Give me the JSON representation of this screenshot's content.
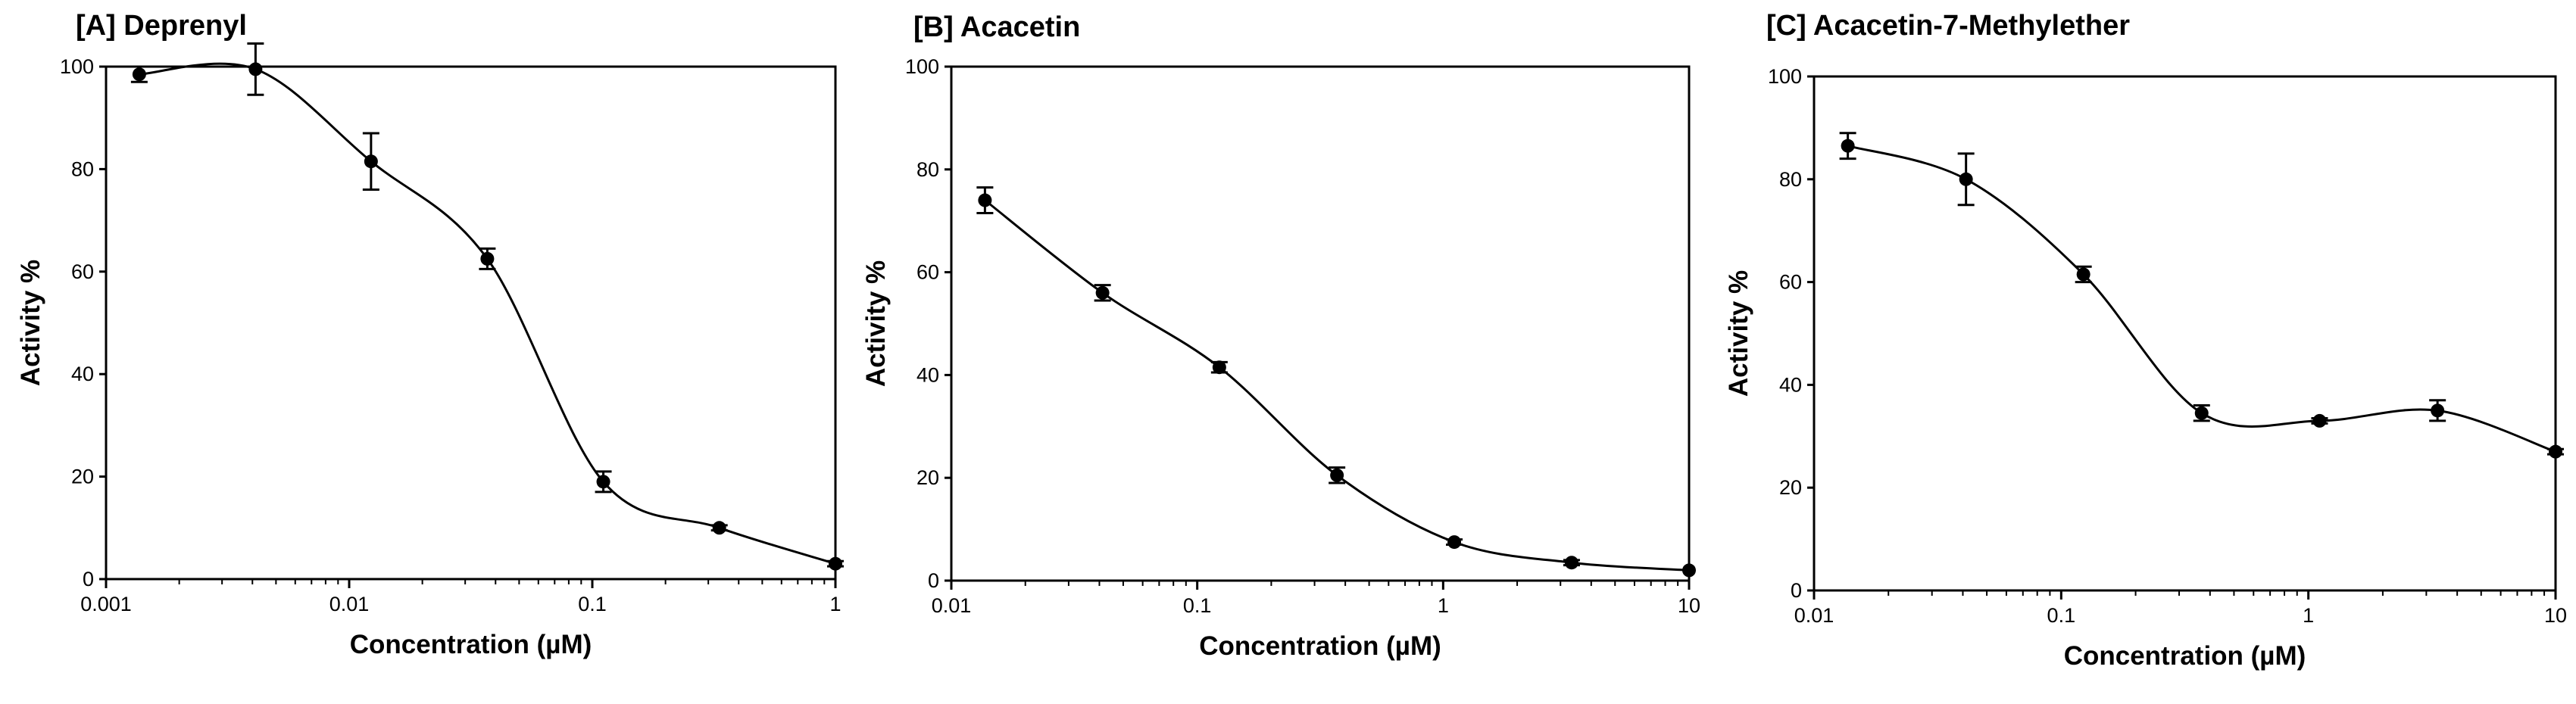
{
  "chart_data": [
    {
      "type": "line",
      "title": "[A] Deprenyl",
      "xlabel": "Concentration (µM)",
      "ylabel": "Activity %",
      "xscale": "log",
      "xlim": [
        0.001,
        1
      ],
      "ylim": [
        0,
        100
      ],
      "xticks": [
        0.001,
        0.01,
        0.1,
        1
      ],
      "xtick_labels": [
        "0.001",
        "0.01",
        "0.1",
        "1"
      ],
      "yticks": [
        0,
        20,
        40,
        60,
        80,
        100
      ],
      "ytick_labels": [
        "0",
        "20",
        "40",
        "60",
        "80",
        "100"
      ],
      "series": [
        {
          "name": "Deprenyl",
          "x": [
            0.00137,
            0.00412,
            0.0123,
            0.037,
            0.111,
            0.333,
            1.0
          ],
          "y": [
            98.5,
            99.5,
            81.5,
            62.5,
            19.0,
            10.0,
            3.0
          ],
          "err": [
            1.5,
            5.0,
            5.5,
            2.0,
            2.0,
            0.5,
            0.5
          ]
        }
      ]
    },
    {
      "type": "line",
      "title": "[B] Acacetin",
      "xlabel": "Concentration (µM)",
      "ylabel": "Activity %",
      "xscale": "log",
      "xlim": [
        0.01,
        10
      ],
      "ylim": [
        0,
        100
      ],
      "xticks": [
        0.01,
        0.1,
        1,
        10
      ],
      "xtick_labels": [
        "0.01",
        "0.1",
        "1",
        "10"
      ],
      "yticks": [
        0,
        20,
        40,
        60,
        80,
        100
      ],
      "ytick_labels": [
        "0",
        "20",
        "40",
        "60",
        "80",
        "100"
      ],
      "series": [
        {
          "name": "Acacetin",
          "x": [
            0.0137,
            0.0412,
            0.123,
            0.37,
            1.11,
            3.33,
            10.0
          ],
          "y": [
            74.0,
            56.0,
            41.5,
            20.5,
            7.5,
            3.5,
            2.0
          ],
          "err": [
            2.5,
            1.5,
            1.0,
            1.5,
            0.5,
            0.5,
            0.3
          ]
        }
      ]
    },
    {
      "type": "line",
      "title": "[C] Acacetin-7-Methylether",
      "xlabel": "Concentration (µM)",
      "ylabel": "Activity %",
      "xscale": "log",
      "xlim": [
        0.01,
        10
      ],
      "ylim": [
        0,
        100
      ],
      "xticks": [
        0.01,
        0.1,
        1,
        10
      ],
      "xtick_labels": [
        "0.01",
        "0.1",
        "1",
        "10"
      ],
      "yticks": [
        0,
        20,
        40,
        60,
        80,
        100
      ],
      "ytick_labels": [
        "0",
        "20",
        "40",
        "60",
        "80",
        "100"
      ],
      "series": [
        {
          "name": "Acacetin-7-Methylether",
          "x": [
            0.0137,
            0.0412,
            0.123,
            0.37,
            1.11,
            3.33,
            10.0
          ],
          "y": [
            86.5,
            80.0,
            61.5,
            34.5,
            33.0,
            35.0,
            27.0
          ],
          "err": [
            2.5,
            5.0,
            1.5,
            1.5,
            0.5,
            2.0,
            0.5
          ]
        }
      ]
    }
  ]
}
